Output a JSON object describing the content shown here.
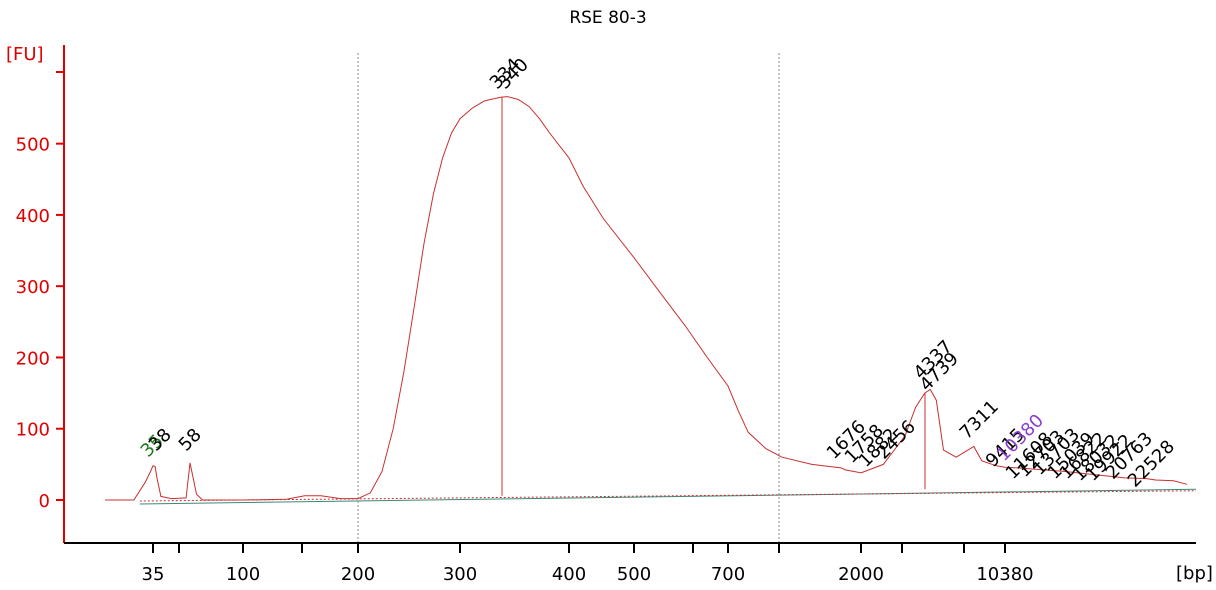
{
  "chart_data": {
    "type": "line",
    "title": "RSE 80-3",
    "ylabel": "[FU]",
    "xlabel": "[bp]",
    "ylim": [
      -55,
      640
    ],
    "yticks": [
      0,
      100,
      200,
      300,
      400,
      500
    ],
    "xticks": [
      "35",
      "100",
      "200",
      "300",
      "400",
      "500",
      "700",
      "2000",
      "10380"
    ],
    "x_scale": "ladder (non-linear, migration based)",
    "grid": "vertical dotted lines at 200 and between 700 and 2000",
    "series": [
      {
        "color": "#c83030",
        "points": [
          [
            20,
            0
          ],
          [
            28,
            0
          ],
          [
            32,
            25
          ],
          [
            34,
            40
          ],
          [
            35,
            48
          ],
          [
            36,
            47
          ],
          [
            37,
            30
          ],
          [
            39,
            5
          ],
          [
            45,
            2
          ],
          [
            55,
            3
          ],
          [
            58,
            52
          ],
          [
            60,
            30
          ],
          [
            62,
            8
          ],
          [
            66,
            0
          ],
          [
            100,
            0
          ],
          [
            130,
            1
          ],
          [
            145,
            6
          ],
          [
            160,
            6
          ],
          [
            180,
            2
          ],
          [
            200,
            2
          ],
          [
            210,
            10
          ],
          [
            220,
            40
          ],
          [
            230,
            100
          ],
          [
            240,
            180
          ],
          [
            250,
            270
          ],
          [
            260,
            360
          ],
          [
            270,
            430
          ],
          [
            280,
            480
          ],
          [
            290,
            515
          ],
          [
            300,
            535
          ],
          [
            310,
            550
          ],
          [
            320,
            560
          ],
          [
            334,
            565
          ],
          [
            340,
            566
          ],
          [
            350,
            562
          ],
          [
            360,
            552
          ],
          [
            370,
            535
          ],
          [
            380,
            515
          ],
          [
            400,
            480
          ],
          [
            420,
            440
          ],
          [
            450,
            395
          ],
          [
            500,
            340
          ],
          [
            550,
            290
          ],
          [
            600,
            245
          ],
          [
            650,
            200
          ],
          [
            700,
            160
          ],
          [
            750,
            125
          ],
          [
            800,
            95
          ],
          [
            900,
            72
          ],
          [
            1000,
            60
          ],
          [
            1300,
            50
          ],
          [
            1676,
            45
          ],
          [
            1758,
            42
          ],
          [
            1882,
            40
          ],
          [
            2000,
            38
          ],
          [
            2456,
            50
          ],
          [
            3000,
            90
          ],
          [
            3500,
            130
          ],
          [
            4000,
            150
          ],
          [
            4337,
            155
          ],
          [
            4739,
            140
          ],
          [
            5200,
            70
          ],
          [
            6000,
            60
          ],
          [
            7311,
            75
          ],
          [
            8000,
            55
          ],
          [
            9415,
            48
          ],
          [
            10380,
            46
          ],
          [
            11000,
            45
          ],
          [
            12608,
            42
          ],
          [
            13703,
            40
          ],
          [
            15000,
            37
          ],
          [
            16000,
            35
          ],
          [
            17000,
            33
          ],
          [
            18000,
            31
          ],
          [
            19922,
            30
          ],
          [
            20763,
            28
          ],
          [
            22528,
            27
          ],
          [
            24000,
            22
          ]
        ]
      }
    ],
    "peaks": [
      {
        "label": "35",
        "color": "#1a7a1a"
      },
      {
        "label": "38",
        "color": "#000000"
      },
      {
        "label": "58",
        "color": "#000000"
      },
      {
        "label": "334",
        "color": "#000000"
      },
      {
        "label": "340",
        "color": "#000000"
      },
      {
        "label": "1676",
        "color": "#000000"
      },
      {
        "label": "1758",
        "color": "#000000"
      },
      {
        "label": "1882",
        "color": "#000000"
      },
      {
        "label": "2456",
        "color": "#000000"
      },
      {
        "label": "4337",
        "color": "#000000"
      },
      {
        "label": "4739",
        "color": "#000000"
      },
      {
        "label": "7311",
        "color": "#000000"
      },
      {
        "label": "9415",
        "color": "#000000"
      },
      {
        "label": "10380",
        "color": "#8a3fd1"
      },
      {
        "label": "11608",
        "color": "#000000"
      },
      {
        "label": "12703",
        "color": "#000000"
      },
      {
        "label": "13703",
        "color": "#000000"
      },
      {
        "label": "15039",
        "color": "#000000"
      },
      {
        "label": "16822",
        "color": "#000000"
      },
      {
        "label": "18032",
        "color": "#000000"
      },
      {
        "label": "19922",
        "color": "#000000"
      },
      {
        "label": "20763",
        "color": "#000000"
      },
      {
        "label": "22528",
        "color": "#000000"
      }
    ],
    "colors": {
      "axis_y": "#e00000",
      "trace": "#c83030",
      "baseline": "#3a8a7a",
      "grid": "#888888"
    }
  }
}
